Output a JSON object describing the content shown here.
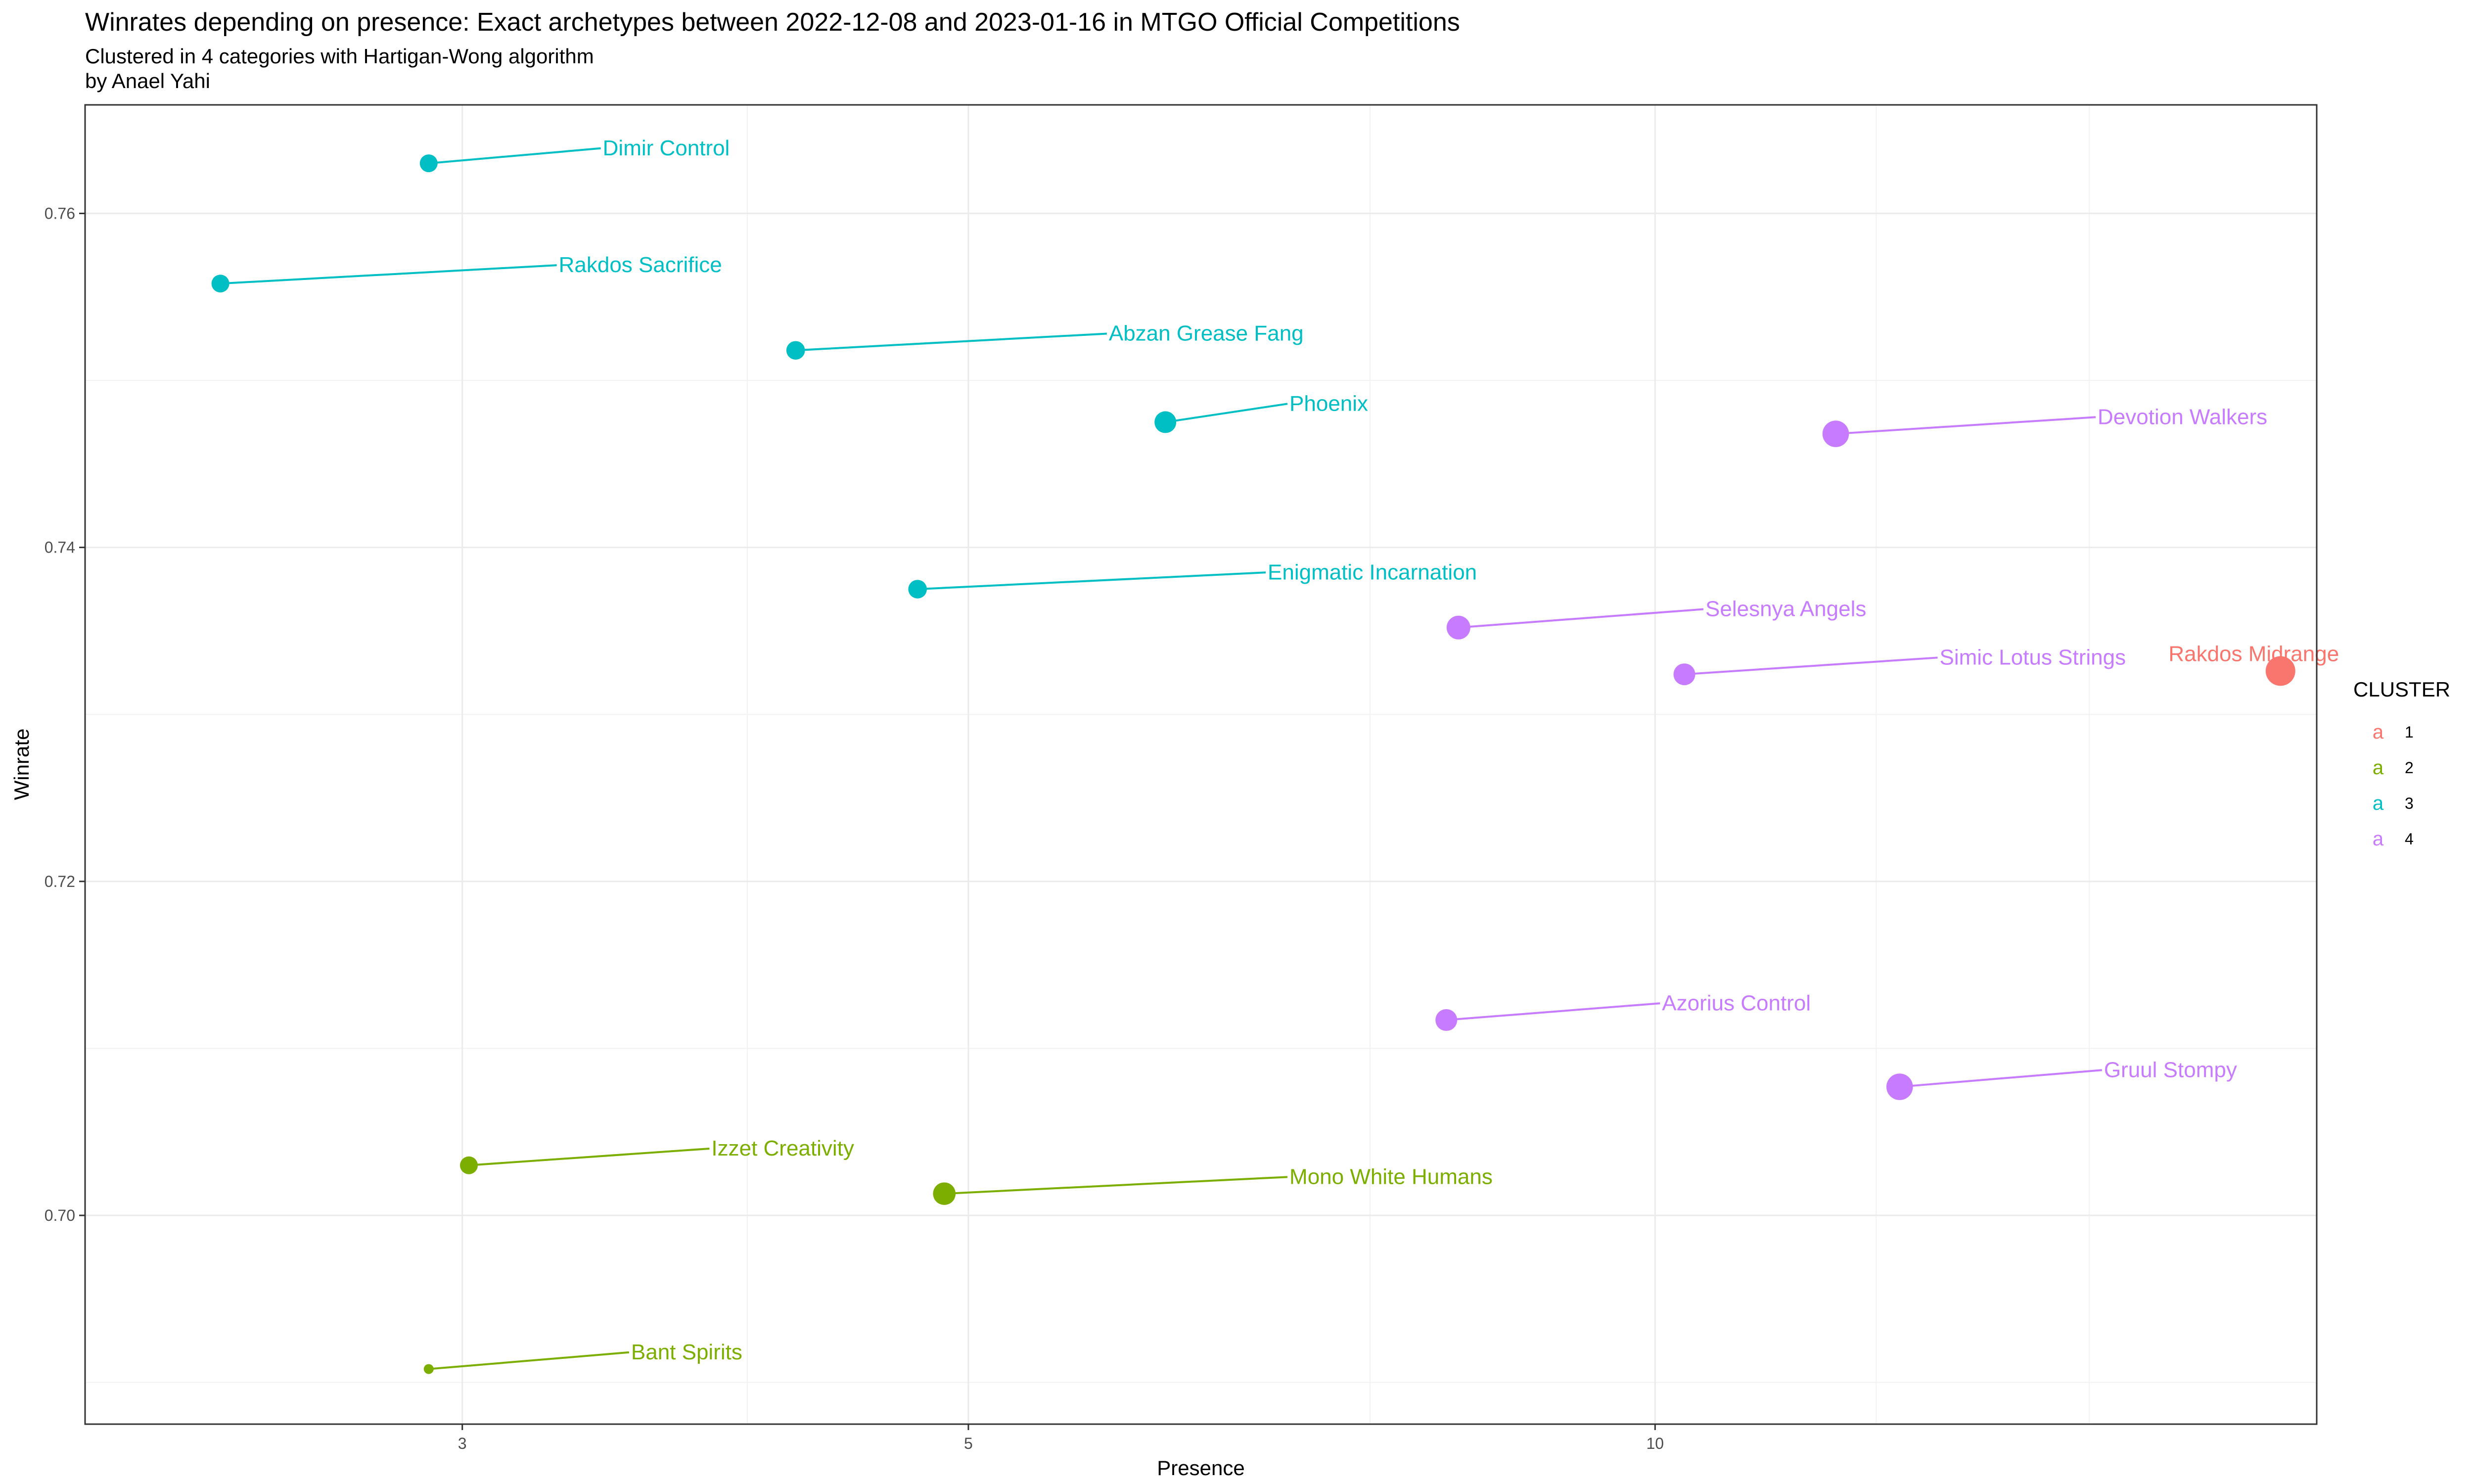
{
  "chart_data": {
    "type": "scatter",
    "title": "Winrates depending on presence: Exact archetypes  between 2022-12-08 and 2023-01-16 in MTGO Official Competitions",
    "subtitle": "Clustered in 4 categories with Hartigan-Wong algorithm",
    "caption": "by Anael Yahi",
    "xlabel": "Presence",
    "ylabel": "Winrate",
    "x_scale": "log",
    "xlim": [
      2.05,
      19.5
    ],
    "ylim": [
      0.6875,
      0.7665
    ],
    "x_ticks": [
      3,
      5,
      10
    ],
    "x_minor_ticks": [
      4,
      7.5,
      12.5,
      15.5
    ],
    "y_ticks": [
      0.7,
      0.72,
      0.74,
      0.76
    ],
    "y_tick_labels": [
      "0.70",
      "0.72",
      "0.74",
      "0.76"
    ],
    "y_minor_ticks": [
      0.69,
      0.71,
      0.73,
      0.75
    ],
    "grid": true,
    "legend": {
      "title": "CLUSTER",
      "position": "right",
      "key_glyph": "a",
      "entries": [
        {
          "label": "1",
          "color": "#F8766D"
        },
        {
          "label": "2",
          "color": "#7CAE00"
        },
        {
          "label": "3",
          "color": "#00BFC4"
        },
        {
          "label": "4",
          "color": "#C77CFF"
        }
      ]
    },
    "points": [
      {
        "name": "Dimir Control",
        "x": 2.9,
        "y": 0.763,
        "cluster": "3",
        "size": 3,
        "label_x": 3.45,
        "label_y": 0.7639
      },
      {
        "name": "Rakdos Sacrifice",
        "x": 2.35,
        "y": 0.7558,
        "cluster": "3",
        "size": 3,
        "label_x": 3.3,
        "label_y": 0.7569
      },
      {
        "name": "Abzan Grease Fang",
        "x": 4.2,
        "y": 0.7518,
        "cluster": "3",
        "size": 3.2,
        "label_x": 5.75,
        "label_y": 0.7528
      },
      {
        "name": "Phoenix",
        "x": 6.1,
        "y": 0.7475,
        "cluster": "3",
        "size": 4,
        "label_x": 6.9,
        "label_y": 0.7486
      },
      {
        "name": "Enigmatic Incarnation",
        "x": 4.75,
        "y": 0.7375,
        "cluster": "3",
        "size": 3.2,
        "label_x": 6.75,
        "label_y": 0.7385
      },
      {
        "name": "Devotion Walkers",
        "x": 12.0,
        "y": 0.7468,
        "cluster": "4",
        "size": 5.2,
        "label_x": 15.6,
        "label_y": 0.7478
      },
      {
        "name": "Selesnya Angels",
        "x": 8.2,
        "y": 0.7352,
        "cluster": "4",
        "size": 4.5,
        "label_x": 10.5,
        "label_y": 0.7363
      },
      {
        "name": "Simic Lotus Strings",
        "x": 10.3,
        "y": 0.7324,
        "cluster": "4",
        "size": 4,
        "label_x": 13.3,
        "label_y": 0.7334
      },
      {
        "name": "Rakdos Midrange",
        "x": 18.8,
        "y": 0.7326,
        "cluster": "1",
        "size": 6,
        "label_x": 18.3,
        "label_y": 0.7336,
        "label_anchor": "middle"
      },
      {
        "name": "Azorius Control",
        "x": 8.1,
        "y": 0.7117,
        "cluster": "4",
        "size": 4,
        "label_x": 10.05,
        "label_y": 0.7127
      },
      {
        "name": "Gruul Stompy",
        "x": 12.8,
        "y": 0.7077,
        "cluster": "4",
        "size": 5.2,
        "label_x": 15.7,
        "label_y": 0.7087
      },
      {
        "name": "Izzet Creativity",
        "x": 3.02,
        "y": 0.703,
        "cluster": "2",
        "size": 3,
        "label_x": 3.85,
        "label_y": 0.704
      },
      {
        "name": "Mono White Humans",
        "x": 4.88,
        "y": 0.7013,
        "cluster": "2",
        "size": 4.2,
        "label_x": 6.9,
        "label_y": 0.7023
      },
      {
        "name": "Bant Spirits",
        "x": 2.9,
        "y": 0.6908,
        "cluster": "2",
        "size": 1,
        "label_x": 3.55,
        "label_y": 0.6918
      }
    ]
  }
}
